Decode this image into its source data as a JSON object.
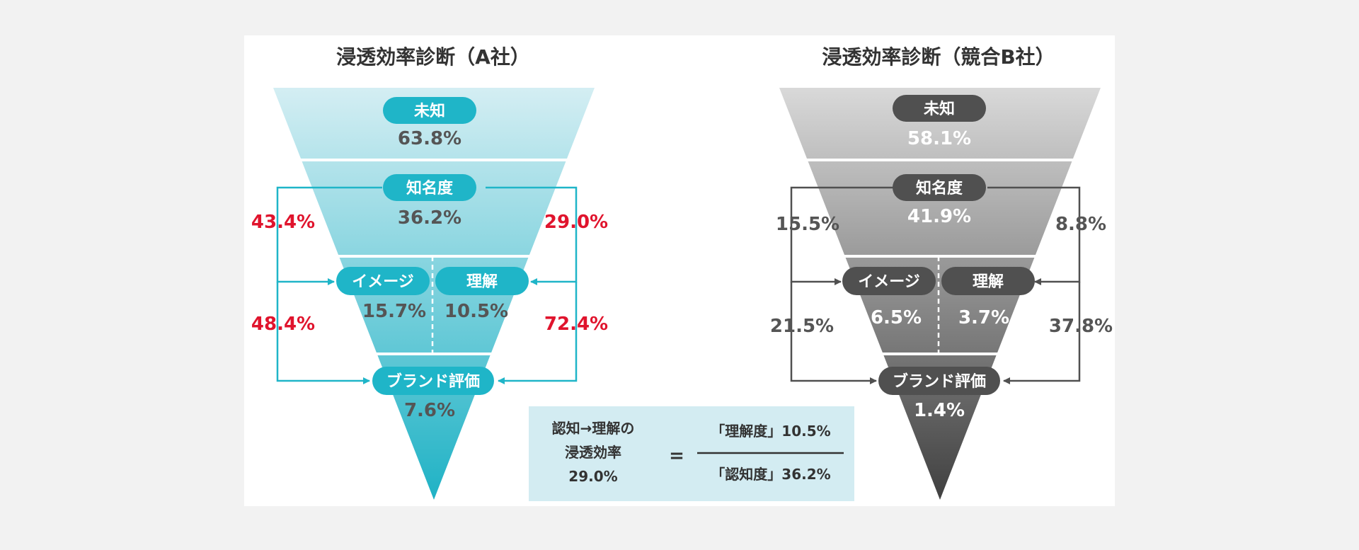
{
  "left": {
    "title": "浸透効率診断（A社）",
    "stages": {
      "unknown": {
        "label": "未知",
        "value": "63.8%"
      },
      "awareness": {
        "label": "知名度",
        "value": "36.2%"
      },
      "image": {
        "label": "イメージ",
        "value": "15.7%"
      },
      "understanding": {
        "label": "理解",
        "value": "10.5%"
      },
      "brand": {
        "label": "ブランド評価",
        "value": "7.6%"
      }
    },
    "rates": {
      "left_upper": "43.4%",
      "left_lower": "48.4%",
      "right_upper": "29.0%",
      "right_lower": "72.4%"
    }
  },
  "right": {
    "title": "浸透効率診断（競合B社）",
    "stages": {
      "unknown": {
        "label": "未知",
        "value": "58.1%"
      },
      "awareness": {
        "label": "知名度",
        "value": "41.9%"
      },
      "image": {
        "label": "イメージ",
        "value": "6.5%"
      },
      "understanding": {
        "label": "理解",
        "value": "3.7%"
      },
      "brand": {
        "label": "ブランド評価",
        "value": "1.4%"
      }
    },
    "rates": {
      "left_upper": "15.5%",
      "left_lower": "21.5%",
      "right_upper": "8.8%",
      "right_lower": "37.8%"
    }
  },
  "formula": {
    "lhs_line1": "認知→理解の",
    "lhs_line2": "浸透効率",
    "lhs_line3": "29.0%",
    "equals": "=",
    "numerator": "「理解度」10.5%",
    "denominator": "「認知度」36.2%"
  },
  "colors": {
    "teal": "#1fb5c8",
    "red": "#e0142d",
    "dark_gray": "#505050",
    "formula_bg": "#d3ecf2"
  }
}
